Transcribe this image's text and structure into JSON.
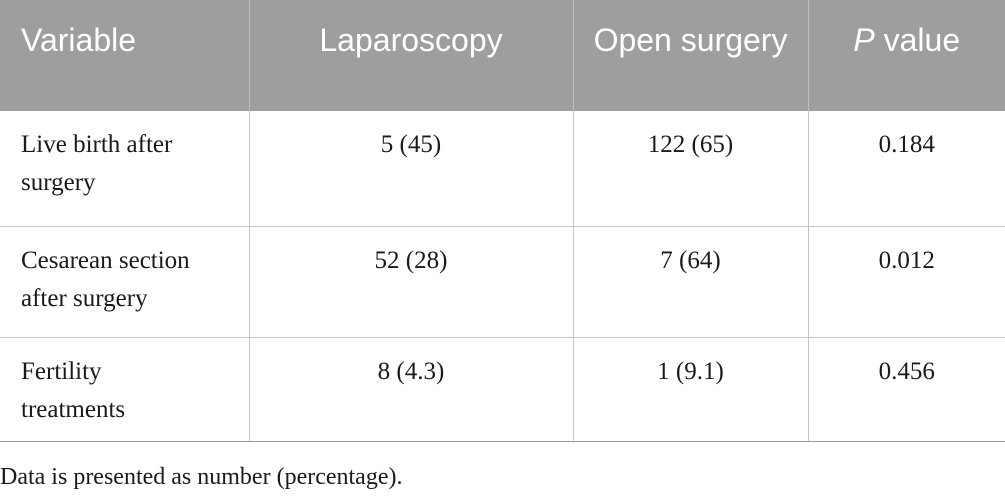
{
  "table": {
    "headers": {
      "variable": "Variable",
      "laparoscopy": "Laparoscopy",
      "open_surgery": "Open surgery",
      "p_italic": "P",
      "p_rest": " value"
    },
    "rows": [
      {
        "variable": "Live birth after surgery",
        "laparoscopy": "5 (45)",
        "open_surgery": "122 (65)",
        "p_value": "0.184"
      },
      {
        "variable": "Cesarean section after surgery",
        "laparoscopy": "52 (28)",
        "open_surgery": "7 (64)",
        "p_value": "0.012"
      },
      {
        "variable": "Fertility treatments",
        "laparoscopy": "8 (4.3)",
        "open_surgery": "1 (9.1)",
        "p_value": "0.456"
      }
    ]
  },
  "footnote": "Data is presented as number (percentage).",
  "colors": {
    "header_bg": "#9e9e9e",
    "header_text": "#ffffff",
    "grid": "#c4c4c4"
  }
}
